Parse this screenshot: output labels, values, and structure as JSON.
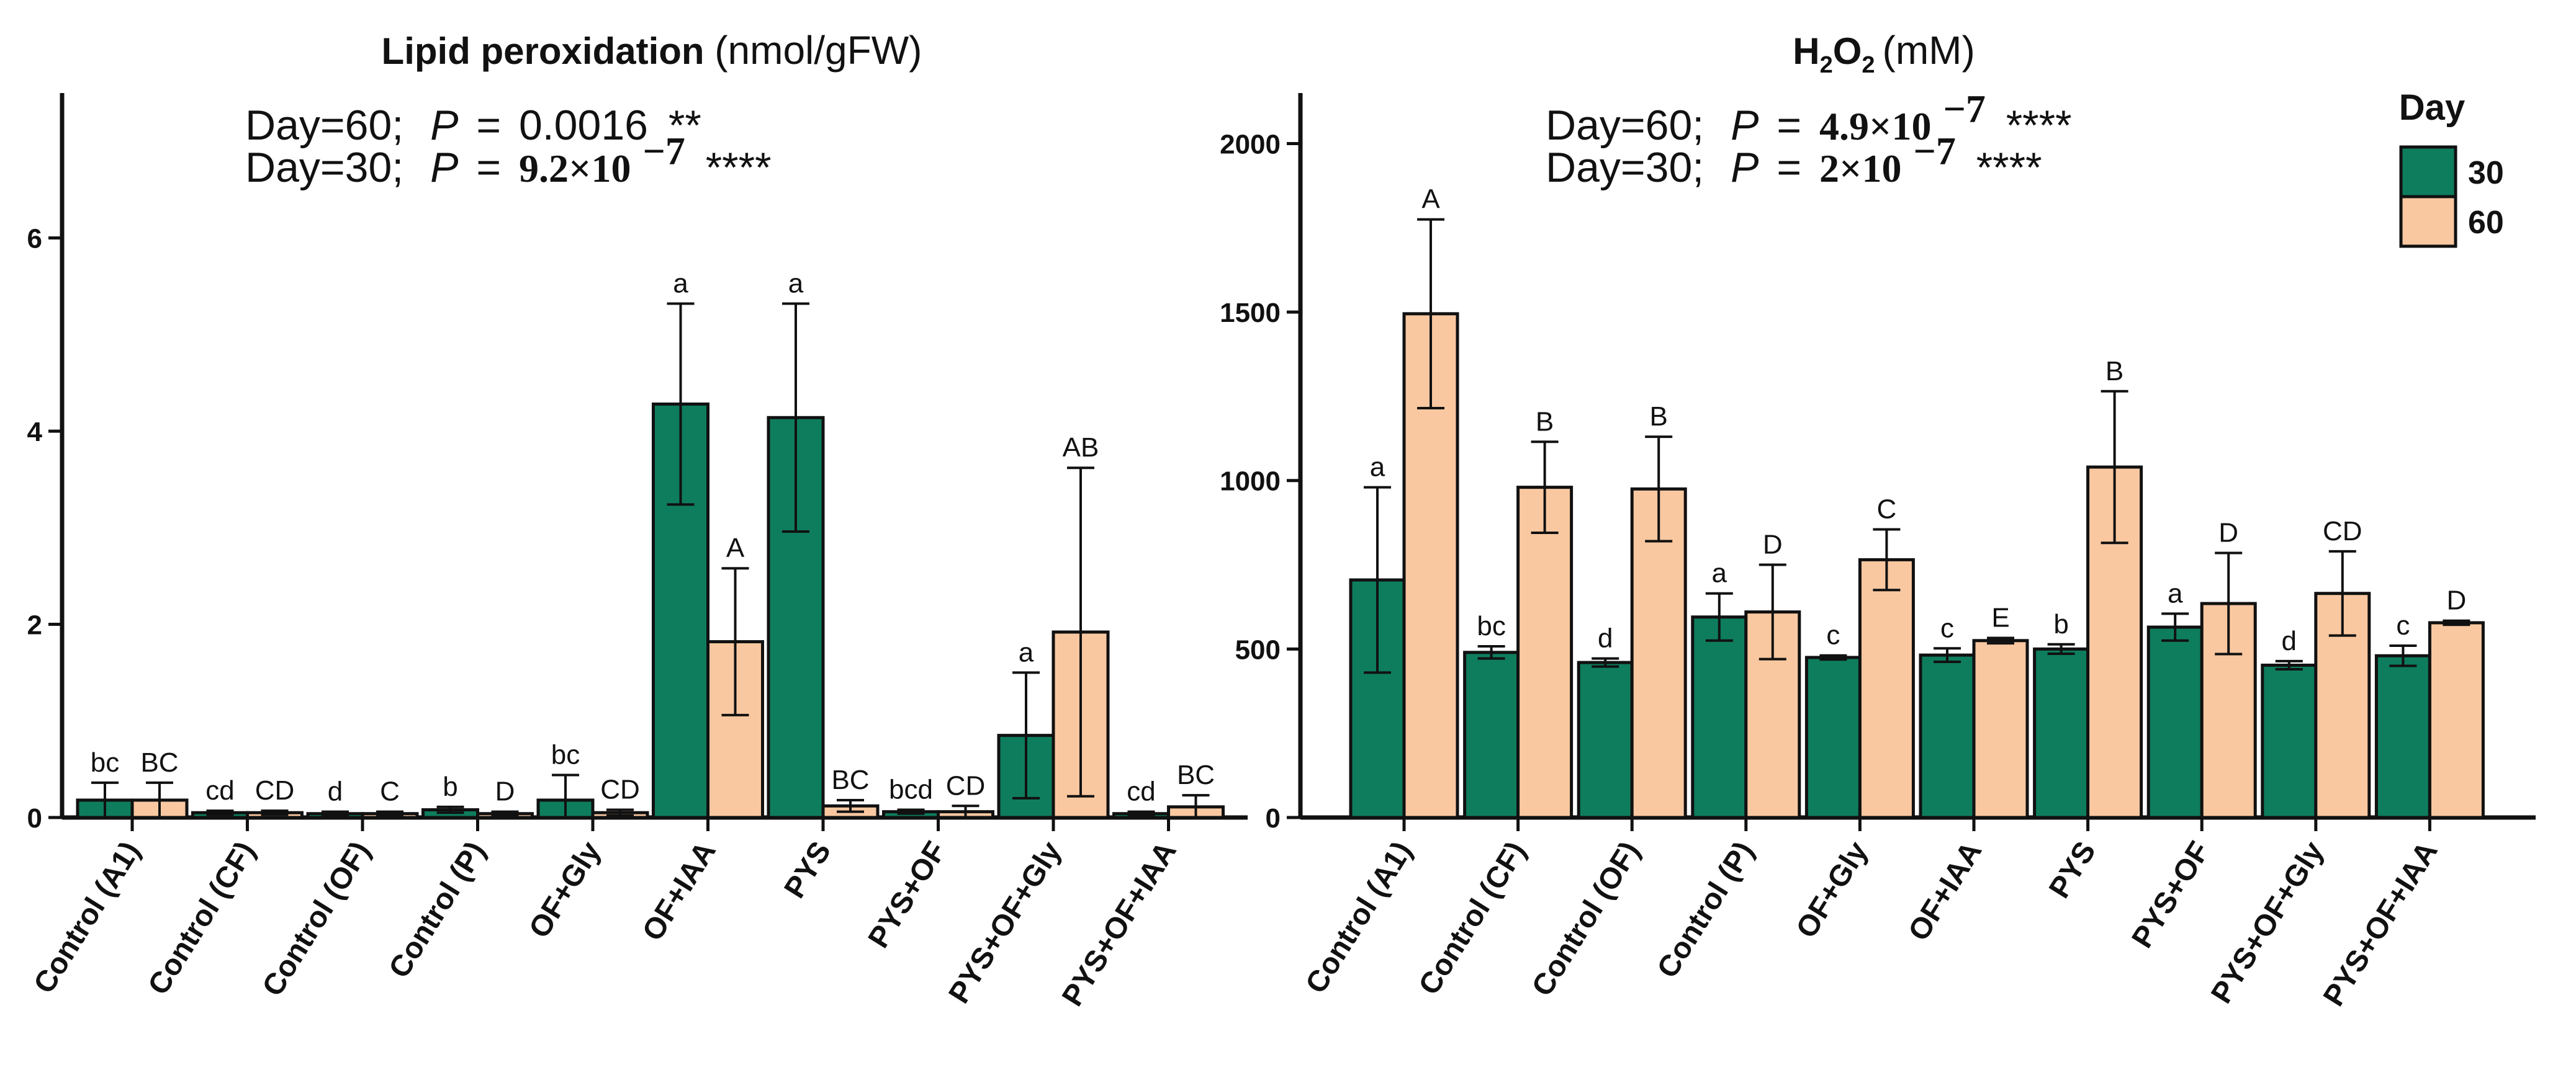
{
  "colors": {
    "day30": "#0E7D5D",
    "day60": "#FAC8A0",
    "axis": "#111111"
  },
  "legend": {
    "title": "Day",
    "items": [
      {
        "label": "30",
        "color": "#0E7D5D"
      },
      {
        "label": "60",
        "color": "#FAC8A0"
      }
    ]
  },
  "chart_data": [
    {
      "type": "bar",
      "title": "Lipid peroxidation (nmol/gFW)",
      "title_main": "Lipid peroxidation",
      "title_unit": "(nmol/gFW)",
      "stats": [
        {
          "label": "Day=60;",
          "p_label": "P",
          "eq": "=",
          "value": "0.0016",
          "stars": "**"
        },
        {
          "label": "Day=30;",
          "p_label": "P",
          "eq": "=",
          "value": "9.2×10",
          "exp": "−7",
          "stars": "****"
        }
      ],
      "categories": [
        "Control (A1)",
        "Control (CF)",
        "Control (OF)",
        "Control (P)",
        "OF+Gly",
        "OF+IAA",
        "PYS",
        "PYS+OF",
        "PYS+OF+Gly",
        "PYS+OF+IAA"
      ],
      "ylim": [
        0,
        7.5
      ],
      "yticks": [
        0,
        2,
        4,
        6
      ],
      "series": [
        {
          "name": "30",
          "values": [
            0.18,
            0.05,
            0.04,
            0.08,
            0.18,
            4.28,
            4.14,
            0.06,
            0.85,
            0.04
          ],
          "errors": [
            0.18,
            0.02,
            0.02,
            0.03,
            0.26,
            1.04,
            1.18,
            0.02,
            0.65,
            0.02
          ],
          "letters": [
            "bc",
            "cd",
            "d",
            "b",
            "bc",
            "a",
            "a",
            "bcd",
            "a",
            "cd"
          ]
        },
        {
          "name": "60",
          "values": [
            0.18,
            0.05,
            0.04,
            0.04,
            0.05,
            1.82,
            0.12,
            0.06,
            1.92,
            0.11
          ],
          "errors": [
            0.18,
            0.02,
            0.02,
            0.02,
            0.03,
            0.76,
            0.06,
            0.06,
            1.7,
            0.12
          ],
          "letters": [
            "BC",
            "CD",
            "C",
            "D",
            "CD",
            "A",
            "BC",
            "CD",
            "AB",
            "BC"
          ]
        }
      ]
    },
    {
      "type": "bar",
      "title": "H2O2 (mM)",
      "title_main": "H",
      "title_sub1": "2",
      "title_mid": "O",
      "title_sub2": "2",
      "title_unit": "(mM)",
      "stats": [
        {
          "label": "Day=60;",
          "p_label": "P",
          "eq": "=",
          "value": "4.9×10",
          "exp": "−7",
          "stars": "****"
        },
        {
          "label": "Day=30;",
          "p_label": "P",
          "eq": "=",
          "value": "2×10",
          "exp": "−7",
          "stars": "****"
        }
      ],
      "categories": [
        "Control (A1)",
        "Control (CF)",
        "Control (OF)",
        "Control (P)",
        "OF+Gly",
        "OF+IAA",
        "PYS",
        "PYS+OF",
        "PYS+OF+Gly",
        "PYS+OF+IAA"
      ],
      "ylim": [
        0,
        2150
      ],
      "yticks": [
        0,
        500,
        1000,
        1500,
        2000
      ],
      "series": [
        {
          "name": "30",
          "values": [
            705,
            490,
            460,
            595,
            475,
            482,
            500,
            565,
            452,
            480
          ],
          "errors": [
            275,
            18,
            12,
            70,
            6,
            20,
            14,
            40,
            12,
            30
          ],
          "letters": [
            "a",
            "bc",
            "d",
            "a",
            "c",
            "c",
            "b",
            "a",
            "d",
            "c"
          ]
        },
        {
          "name": "60",
          "values": [
            1495,
            980,
            975,
            610,
            765,
            525,
            1040,
            635,
            665,
            578
          ],
          "errors": [
            280,
            135,
            155,
            140,
            90,
            8,
            225,
            150,
            125,
            6
          ],
          "letters": [
            "A",
            "B",
            "B",
            "D",
            "C",
            "E",
            "B",
            "D",
            "CD",
            "D"
          ]
        }
      ]
    }
  ]
}
